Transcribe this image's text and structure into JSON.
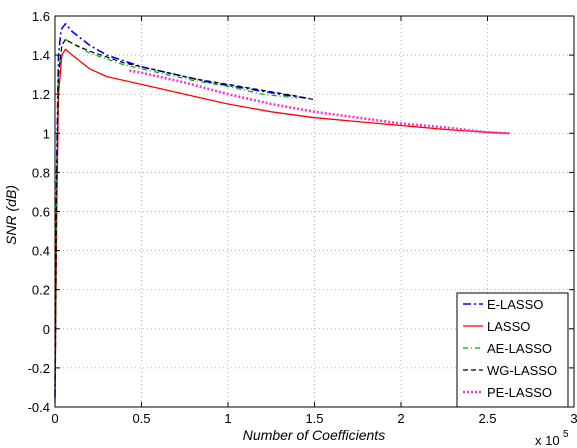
{
  "chart_data": {
    "type": "line",
    "xlabel": "Number of Coefficients",
    "ylabel": "SNR (dB)",
    "x_multiplier_label": "x 10",
    "x_multiplier_exponent": "5",
    "xlim": [
      0,
      3
    ],
    "ylim": [
      -0.4,
      1.6
    ],
    "xticks": [
      0,
      0.5,
      1,
      1.5,
      2,
      2.5,
      3
    ],
    "xtick_labels": [
      "0",
      "0.5",
      "1",
      "1.5",
      "2",
      "2.5",
      "3"
    ],
    "yticks": [
      -0.4,
      -0.2,
      0,
      0.2,
      0.4,
      0.6,
      0.8,
      1,
      1.2,
      1.4,
      1.6
    ],
    "ytick_labels": [
      "-0.4",
      "-0.2",
      "0",
      "0.2",
      "0.4",
      "0.6",
      "0.8",
      "1",
      "1.2",
      "1.4",
      "1.6"
    ],
    "grid": true,
    "legend_position": "bottom-right",
    "series": [
      {
        "name": "E-LASSO",
        "color": "#0000ff",
        "dash": "8,3,2,3",
        "width": 1.6,
        "points": [
          [
            0.0,
            -0.35
          ],
          [
            0.01,
            0.85
          ],
          [
            0.02,
            1.4
          ],
          [
            0.035,
            1.53
          ],
          [
            0.06,
            1.56
          ],
          [
            0.1,
            1.52
          ],
          [
            0.2,
            1.45
          ],
          [
            0.3,
            1.4
          ],
          [
            0.5,
            1.34
          ],
          [
            0.7,
            1.3
          ],
          [
            0.9,
            1.26
          ],
          [
            1.1,
            1.23
          ],
          [
            1.3,
            1.2
          ],
          [
            1.45,
            1.18
          ]
        ]
      },
      {
        "name": "LASSO",
        "color": "#ff0000",
        "dash": "",
        "width": 1.3,
        "points": [
          [
            0.0,
            -0.38
          ],
          [
            0.01,
            0.6
          ],
          [
            0.02,
            1.2
          ],
          [
            0.04,
            1.4
          ],
          [
            0.06,
            1.43
          ],
          [
            0.1,
            1.4
          ],
          [
            0.2,
            1.33
          ],
          [
            0.3,
            1.29
          ],
          [
            0.5,
            1.25
          ],
          [
            0.75,
            1.2
          ],
          [
            1.0,
            1.15
          ],
          [
            1.25,
            1.11
          ],
          [
            1.5,
            1.08
          ],
          [
            1.75,
            1.06
          ],
          [
            2.0,
            1.04
          ],
          [
            2.25,
            1.02
          ],
          [
            2.5,
            1.005
          ],
          [
            2.62,
            1.0
          ]
        ]
      },
      {
        "name": "AE-LASSO",
        "color": "#00aa00",
        "dash": "5,3,1,3",
        "width": 1.2,
        "points": [
          [
            0.0,
            -0.3
          ],
          [
            0.01,
            0.8
          ],
          [
            0.02,
            1.3
          ],
          [
            0.04,
            1.45
          ],
          [
            0.06,
            1.48
          ],
          [
            0.1,
            1.46
          ],
          [
            0.2,
            1.41
          ],
          [
            0.4,
            1.35
          ],
          [
            0.6,
            1.31
          ],
          [
            0.8,
            1.27
          ],
          [
            1.0,
            1.24
          ],
          [
            1.2,
            1.2
          ],
          [
            1.4,
            1.18
          ]
        ]
      },
      {
        "name": "WG-LASSO",
        "color": "#000000",
        "dash": "5,3",
        "width": 1.2,
        "points": [
          [
            0.0,
            -0.3
          ],
          [
            0.01,
            0.8
          ],
          [
            0.02,
            1.3
          ],
          [
            0.04,
            1.45
          ],
          [
            0.06,
            1.48
          ],
          [
            0.1,
            1.46
          ],
          [
            0.2,
            1.42
          ],
          [
            0.4,
            1.36
          ],
          [
            0.6,
            1.32
          ],
          [
            0.8,
            1.28
          ],
          [
            1.0,
            1.25
          ],
          [
            1.2,
            1.22
          ],
          [
            1.4,
            1.19
          ],
          [
            1.51,
            1.17
          ]
        ]
      },
      {
        "name": "PE-LASSO",
        "color": "#ff33cc",
        "dash": "2,2",
        "width": 2.6,
        "points": [
          [
            0.43,
            1.32
          ],
          [
            0.5,
            1.31
          ],
          [
            0.75,
            1.26
          ],
          [
            1.0,
            1.2
          ],
          [
            1.25,
            1.15
          ],
          [
            1.5,
            1.11
          ],
          [
            1.75,
            1.08
          ],
          [
            2.0,
            1.05
          ],
          [
            2.25,
            1.03
          ],
          [
            2.5,
            1.005
          ],
          [
            2.63,
            1.0
          ]
        ]
      }
    ]
  }
}
